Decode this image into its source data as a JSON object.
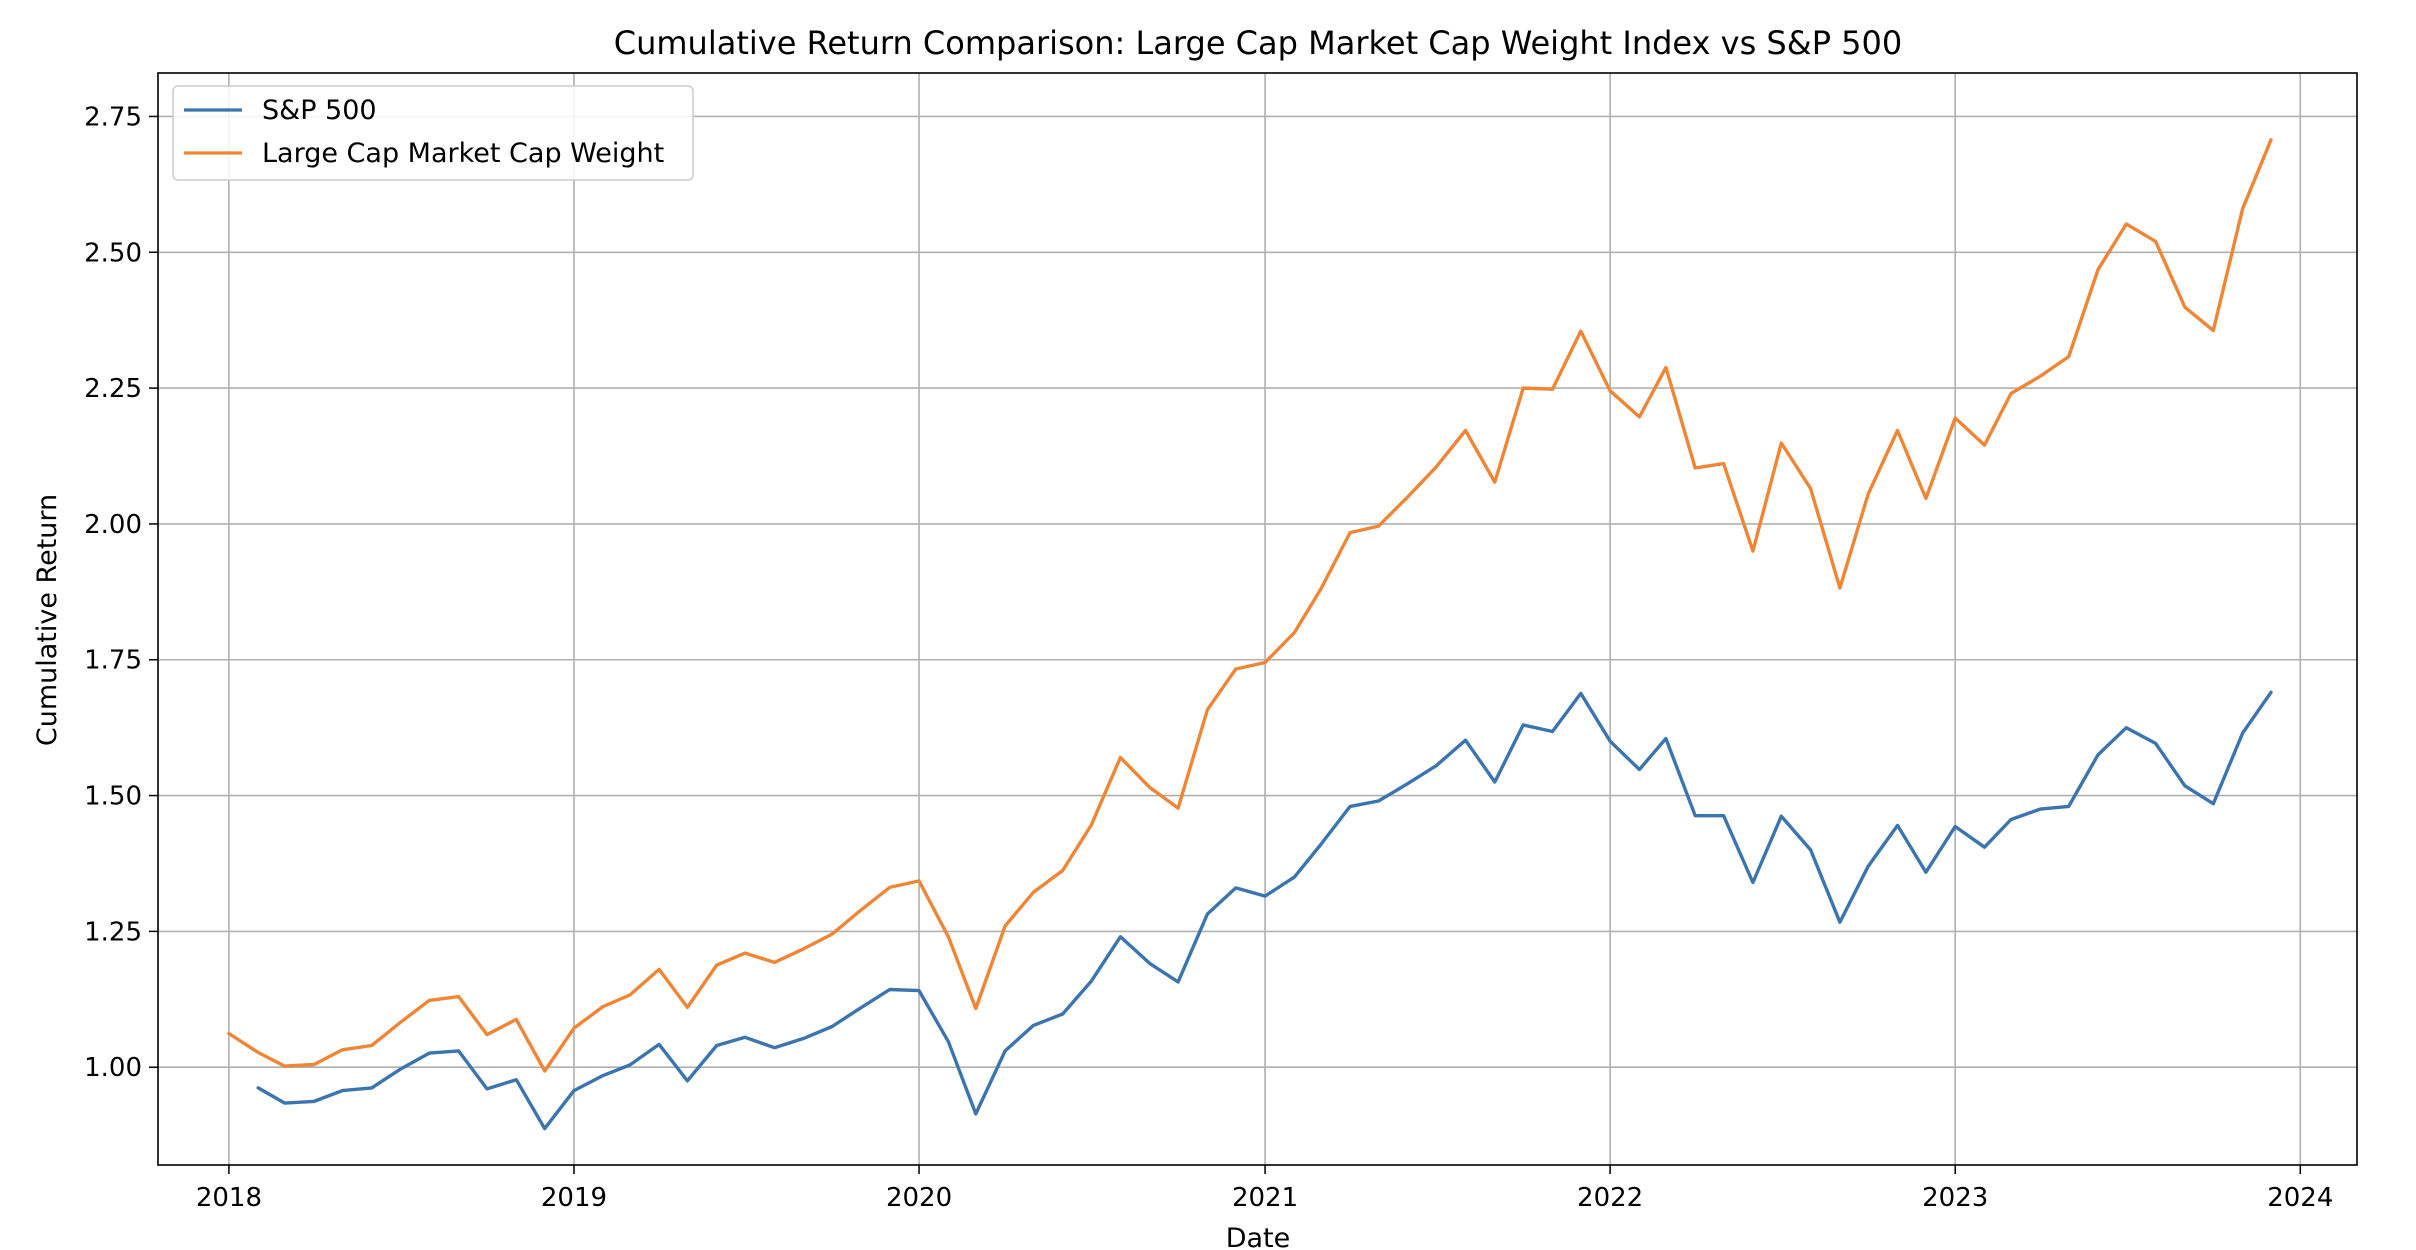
{
  "chart_data": {
    "type": "line",
    "title": "Cumulative Return Comparison: Large Cap Market Cap Weight Index vs S&P 500",
    "xlabel": "Date",
    "ylabel": "Cumulative Return",
    "xlim": [
      "2017-10-18",
      "2024-03-01"
    ],
    "ylim": [
      0.82,
      2.83
    ],
    "grid": true,
    "legend_position": "upper left",
    "x_ticks": [
      "2018",
      "2019",
      "2020",
      "2021",
      "2022",
      "2023",
      "2024"
    ],
    "y_ticks": [
      "1.00",
      "1.25",
      "1.50",
      "1.75",
      "2.00",
      "2.25",
      "2.50",
      "2.75"
    ],
    "series": [
      {
        "name": "S&P 500",
        "color": "#3b75af",
        "x": [
          "2018-02-01",
          "2018-03-01",
          "2018-04-01",
          "2018-05-01",
          "2018-06-01",
          "2018-07-01",
          "2018-08-01",
          "2018-09-01",
          "2018-10-01",
          "2018-11-01",
          "2018-12-01",
          "2019-01-01",
          "2019-02-01",
          "2019-03-01",
          "2019-04-01",
          "2019-05-01",
          "2019-06-01",
          "2019-07-01",
          "2019-08-01",
          "2019-09-01",
          "2019-10-01",
          "2019-11-01",
          "2019-12-01",
          "2020-01-01",
          "2020-02-01",
          "2020-03-01",
          "2020-04-01",
          "2020-05-01",
          "2020-06-01",
          "2020-07-01",
          "2020-08-01",
          "2020-09-01",
          "2020-10-01",
          "2020-11-01",
          "2020-12-01",
          "2021-01-01",
          "2021-02-01",
          "2021-03-01",
          "2021-04-01",
          "2021-05-01",
          "2021-06-01",
          "2021-07-01",
          "2021-08-01",
          "2021-09-01",
          "2021-10-01",
          "2021-11-01",
          "2021-12-01",
          "2022-01-01",
          "2022-02-01",
          "2022-03-01",
          "2022-04-01",
          "2022-05-01",
          "2022-06-01",
          "2022-07-01",
          "2022-08-01",
          "2022-09-01",
          "2022-10-01",
          "2022-11-01",
          "2022-12-01",
          "2023-01-01",
          "2023-02-01",
          "2023-03-01",
          "2023-04-01",
          "2023-05-01",
          "2023-06-01",
          "2023-07-01",
          "2023-08-01",
          "2023-09-01",
          "2023-10-01",
          "2023-11-01",
          "2023-12-01"
        ],
        "y": [
          0.962,
          0.934,
          0.937,
          0.957,
          0.962,
          0.996,
          1.026,
          1.03,
          0.96,
          0.977,
          0.887,
          0.957,
          0.985,
          1.004,
          1.042,
          0.975,
          1.04,
          1.055,
          1.036,
          1.053,
          1.075,
          1.11,
          1.143,
          1.141,
          1.047,
          0.914,
          1.03,
          1.077,
          1.098,
          1.158,
          1.24,
          1.191,
          1.157,
          1.282,
          1.33,
          1.315,
          1.35,
          1.41,
          1.48,
          1.49,
          1.522,
          1.555,
          1.602,
          1.525,
          1.63,
          1.618,
          1.688,
          1.6,
          1.548,
          1.605,
          1.463,
          1.463,
          1.34,
          1.462,
          1.4,
          1.267,
          1.37,
          1.445,
          1.359,
          1.443,
          1.405,
          1.456,
          1.475,
          1.48,
          1.575,
          1.625,
          1.596,
          1.518,
          1.485,
          1.615,
          1.69
        ]
      },
      {
        "name": "Large Cap Market Cap Weight",
        "color": "#ef8636",
        "x": [
          "2018-01-01",
          "2018-02-01",
          "2018-03-01",
          "2018-04-01",
          "2018-05-01",
          "2018-06-01",
          "2018-07-01",
          "2018-08-01",
          "2018-09-01",
          "2018-10-01",
          "2018-11-01",
          "2018-12-01",
          "2019-01-01",
          "2019-02-01",
          "2019-03-01",
          "2019-04-01",
          "2019-05-01",
          "2019-06-01",
          "2019-07-01",
          "2019-08-01",
          "2019-09-01",
          "2019-10-01",
          "2019-11-01",
          "2019-12-01",
          "2020-01-01",
          "2020-02-01",
          "2020-03-01",
          "2020-04-01",
          "2020-05-01",
          "2020-06-01",
          "2020-07-01",
          "2020-08-01",
          "2020-09-01",
          "2020-10-01",
          "2020-11-01",
          "2020-12-01",
          "2021-01-01",
          "2021-02-01",
          "2021-03-01",
          "2021-04-01",
          "2021-05-01",
          "2021-06-01",
          "2021-07-01",
          "2021-08-01",
          "2021-09-01",
          "2021-10-01",
          "2021-11-01",
          "2021-12-01",
          "2022-01-01",
          "2022-02-01",
          "2022-03-01",
          "2022-04-01",
          "2022-05-01",
          "2022-06-01",
          "2022-07-01",
          "2022-08-01",
          "2022-09-01",
          "2022-10-01",
          "2022-11-01",
          "2022-12-01",
          "2023-01-01",
          "2023-02-01",
          "2023-03-01",
          "2023-04-01",
          "2023-05-01",
          "2023-06-01",
          "2023-07-01",
          "2023-08-01",
          "2023-09-01",
          "2023-10-01",
          "2023-11-01",
          "2023-12-01"
        ],
        "y": [
          1.062,
          1.027,
          1.002,
          1.005,
          1.032,
          1.04,
          1.082,
          1.123,
          1.13,
          1.06,
          1.088,
          0.993,
          1.072,
          1.112,
          1.133,
          1.18,
          1.11,
          1.188,
          1.21,
          1.193,
          1.218,
          1.245,
          1.29,
          1.331,
          1.343,
          1.24,
          1.108,
          1.26,
          1.322,
          1.362,
          1.445,
          1.57,
          1.515,
          1.477,
          1.658,
          1.733,
          1.745,
          1.8,
          1.88,
          1.984,
          1.996,
          2.05,
          2.105,
          2.172,
          2.077,
          2.25,
          2.248,
          2.355,
          2.245,
          2.197,
          2.288,
          2.103,
          2.111,
          1.95,
          2.149,
          2.065,
          1.882,
          2.055,
          2.172,
          2.047,
          2.195,
          2.145,
          2.24,
          2.272,
          2.308,
          2.468,
          2.552,
          2.52,
          2.399,
          2.356,
          2.58,
          2.707
        ]
      }
    ]
  }
}
